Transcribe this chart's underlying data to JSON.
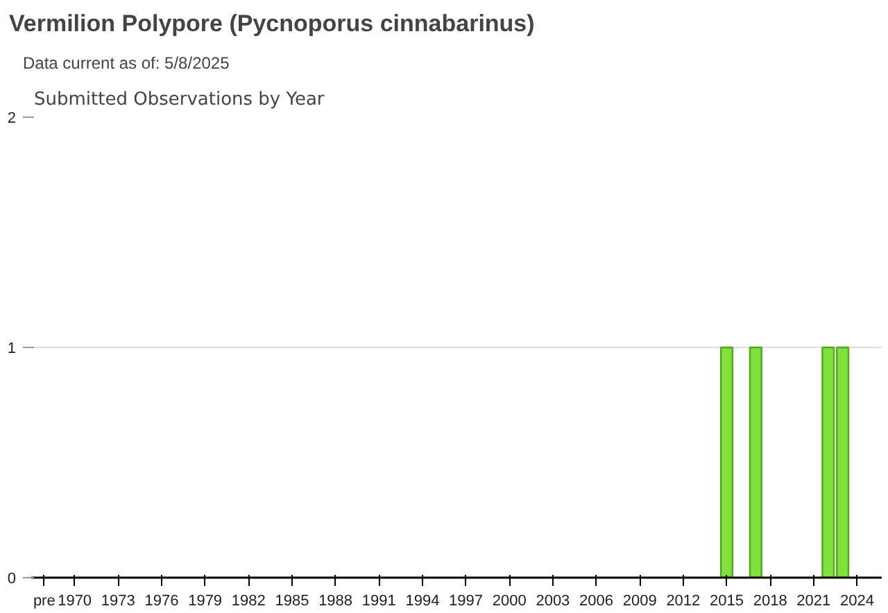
{
  "chart_data": {
    "type": "bar",
    "title": "Vermilion Polypore   (Pycnoporus cinnabarinus)",
    "subtitle": "Data current as of: 5/8/2025",
    "annotations": [
      "Submitted Observations by Year"
    ],
    "categories": [
      "pre",
      "1970",
      null,
      null,
      "1973",
      null,
      null,
      "1976",
      null,
      null,
      "1979",
      null,
      null,
      "1982",
      null,
      null,
      "1985",
      null,
      null,
      "1988",
      null,
      null,
      "1991",
      null,
      null,
      "1994",
      null,
      null,
      "1997",
      null,
      null,
      "2000",
      null,
      null,
      "2003",
      null,
      null,
      "2006",
      null,
      null,
      "2009",
      null,
      null,
      "2012",
      null,
      null,
      "2015",
      null,
      null,
      "2018",
      null,
      null,
      "2021",
      null,
      null,
      "2024",
      null
    ],
    "values": [
      0,
      0,
      0,
      0,
      0,
      0,
      0,
      0,
      0,
      0,
      0,
      0,
      0,
      0,
      0,
      0,
      0,
      0,
      0,
      0,
      0,
      0,
      0,
      0,
      0,
      0,
      0,
      0,
      0,
      0,
      0,
      0,
      0,
      0,
      0,
      0,
      0,
      0,
      0,
      0,
      0,
      0,
      0,
      0,
      0,
      0,
      1,
      0,
      1,
      0,
      0,
      0,
      0,
      1,
      1,
      0,
      0
    ],
    "color": "#80e03c",
    "ylim": [
      0,
      2
    ],
    "yticks": [
      0,
      1,
      2
    ],
    "grid": "y"
  }
}
